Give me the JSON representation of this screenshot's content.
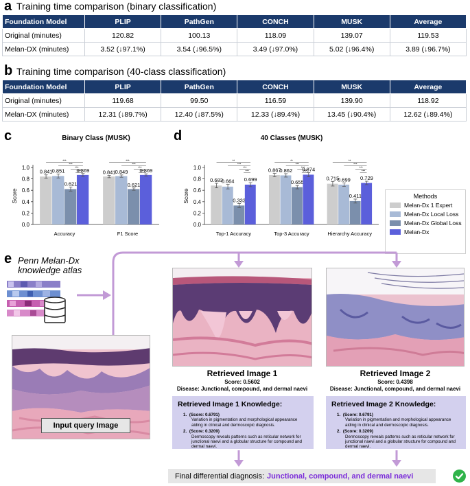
{
  "panels": {
    "a": {
      "letter": "a",
      "title": "Training time comparison (binary classification)"
    },
    "b": {
      "letter": "b",
      "title": "Training time comparison (40-class classification)"
    },
    "c": {
      "letter": "c"
    },
    "d": {
      "letter": "d"
    },
    "e": {
      "letter": "e"
    }
  },
  "table_a": {
    "headers": [
      "Foundation Model",
      "PLIP",
      "PathGen",
      "CONCH",
      "MUSK",
      "Average"
    ],
    "rows": [
      [
        "Original (minutes)",
        "120.82",
        "100.13",
        "118.09",
        "139.07",
        "119.53"
      ],
      [
        "Melan-DX (minutes)",
        "3.52 (↓97.1%)",
        "3.54 (↓96.5%)",
        "3.49 (↓97.0%)",
        "5.02 (↓96.4%)",
        "3.89 (↓96.7%)"
      ]
    ]
  },
  "table_b": {
    "headers": [
      "Foundation Model",
      "PLIP",
      "PathGen",
      "CONCH",
      "MUSK",
      "Average"
    ],
    "rows": [
      [
        "Original (minutes)",
        "119.68",
        "99.50",
        "116.59",
        "139.90",
        "118.92"
      ],
      [
        "Melan-DX (minutes)",
        "12.31 (↓89.7%)",
        "12.40 (↓87.5%)",
        "12.33 (↓89.4%)",
        "13.45 (↓90.4%)",
        "12.62 (↓89.4%)"
      ]
    ]
  },
  "chart_data": [
    {
      "type": "bar",
      "title": "Binary Class (MUSK)",
      "ylabel": "Score",
      "ylim": [
        0,
        1.0
      ],
      "yticks": [
        "0.0",
        "0.2",
        "0.4",
        "0.6",
        "0.8",
        "1.0"
      ],
      "categories": [
        "Accuracy",
        "F1 Score"
      ],
      "series": [
        {
          "values": [
            0.841,
            0.841
          ],
          "labels": [
            "0.841",
            "0.841"
          ]
        },
        {
          "values": [
            0.851,
            0.849
          ],
          "labels": [
            "0.851",
            "0.849"
          ]
        },
        {
          "values": [
            0.621,
            0.621
          ],
          "labels": [
            "0.621",
            "0.621"
          ]
        },
        {
          "values": [
            0.869,
            0.869
          ],
          "labels": [
            "0.869",
            "0.869"
          ]
        }
      ],
      "errors": [
        [
          0.03,
          0.02
        ],
        [
          0.035,
          0.02
        ],
        [
          0.035,
          0.02
        ],
        [
          0.025,
          0.02
        ]
      ],
      "significance": [
        "***",
        "***",
        "***",
        "***"
      ],
      "grid": false
    },
    {
      "type": "bar",
      "title": "40 Classes (MUSK)",
      "ylabel": "Score",
      "ylim": [
        0,
        1.0
      ],
      "yticks": [
        "0.0",
        "0.2",
        "0.4",
        "0.6",
        "0.8",
        "1.0"
      ],
      "categories": [
        "Top-1 Accuracy",
        "Top-3 Accuracy",
        "Hierarchy Accuracy"
      ],
      "series": [
        {
          "name": "Melan-Dx 1 Expert",
          "values": [
            0.683,
            0.867,
            0.715
          ],
          "labels": [
            "0.683",
            "0.867",
            "0.715"
          ]
        },
        {
          "name": "Melan-Dx Local Loss",
          "values": [
            0.664,
            0.862,
            0.699
          ],
          "labels": [
            "0.664",
            "0.862",
            "0.699"
          ]
        },
        {
          "name": "Melan-Dx Global Loss",
          "values": [
            0.333,
            0.655,
            0.411
          ],
          "labels": [
            "0.333",
            "0.655",
            "0.411"
          ]
        },
        {
          "name": "Melan-Dx",
          "values": [
            0.699,
            0.874,
            0.729
          ],
          "labels": [
            "0.699",
            "0.874",
            "0.729"
          ]
        }
      ],
      "errors": [
        [
          0.04,
          0.03,
          0.04
        ],
        [
          0.04,
          0.03,
          0.03
        ],
        [
          0.035,
          0.03,
          0.035
        ],
        [
          0.035,
          0.035,
          0.03
        ]
      ],
      "significance": [
        "**",
        "***",
        "***",
        "***"
      ],
      "legend": {
        "title": "Methods",
        "placement": "right"
      },
      "grid": false
    }
  ],
  "colors": {
    "series": [
      "#cdcdcd",
      "#a8bad6",
      "#7b8fac",
      "#5b5fdb"
    ],
    "header_bg": "#1b3a6b",
    "arrow": "#c29ad6",
    "knowledge_bg": "#d3d0ee",
    "final_accent": "#7b2cd9",
    "check": "#2fb34a"
  },
  "workflow": {
    "atlas_title": "Penn Melan-Dx knowledge atlas",
    "database_icon": "database-icon",
    "query_label": "Input query Image",
    "retrieved": [
      {
        "title": "Retrieved Image 1",
        "score": "Score: 0.5602",
        "disease": "Disease: Junctional, compound, and dermal naevi",
        "knowledge_title": "Retrieved Image 1 Knowledge:",
        "items": [
          {
            "num": "1.",
            "score": "(Score: 0.6791)",
            "text": "Variation in pigmentation and morphological appearance aiding in clinical and dermoscopic diagnosis."
          },
          {
            "num": "2.",
            "score": "(Score: 0.3209)",
            "text": "Dermoscopy reveals patterns such as reticular network for junctional naevi and a globular structure for compound and dermal naevi."
          }
        ]
      },
      {
        "title": "Retrieved Image 2",
        "score": "Score: 0.4398",
        "disease": "Disease: Junctional, compound, and dermal naevi",
        "knowledge_title": "Retrieved Image 2 Knowledge:",
        "items": [
          {
            "num": "1.",
            "score": "(Score: 0.6791)",
            "text": "Variation in pigmentation and morphological appearance aiding in clinical and dermoscopic diagnosis."
          },
          {
            "num": "2.",
            "score": "(Score: 0.3209)",
            "text": "Dermoscopy reveals patterns such as reticular network for junctional naevi and a globular structure for compound and dermal naevi."
          }
        ]
      }
    ],
    "final_label": "Final differential diagnosis:",
    "final_value": "Junctional, compound, and dermal naevi",
    "check_icon": "check-circle-icon"
  }
}
